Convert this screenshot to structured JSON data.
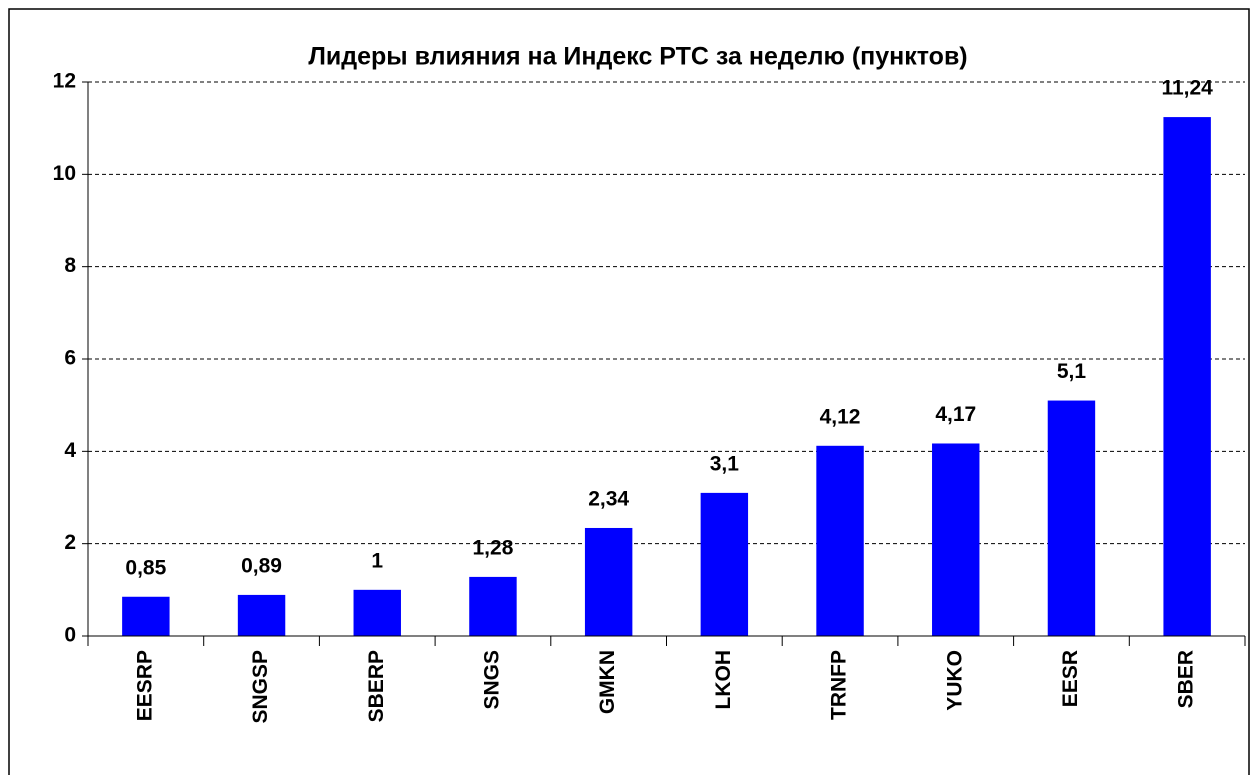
{
  "chart_data": {
    "type": "bar",
    "title": "Лидеры влияния на Индекс РТС за неделю (пунктов)",
    "categories": [
      "EESRP",
      "SNGSP",
      "SBERP",
      "SNGS",
      "GMKN",
      "LKOH",
      "TRNFP",
      "YUKO",
      "EESR",
      "SBER"
    ],
    "values": [
      0.85,
      0.89,
      1,
      1.28,
      2.34,
      3.1,
      4.12,
      4.17,
      5.1,
      11.24
    ],
    "value_labels": [
      "0,85",
      "0,89",
      "1",
      "1,28",
      "2,34",
      "3,1",
      "4,12",
      "4,17",
      "5,1",
      "11,24"
    ],
    "color": "#0000ff",
    "ylim": [
      0,
      12
    ],
    "yticks": [
      0,
      2,
      4,
      6,
      8,
      10,
      12
    ],
    "grid": true
  }
}
